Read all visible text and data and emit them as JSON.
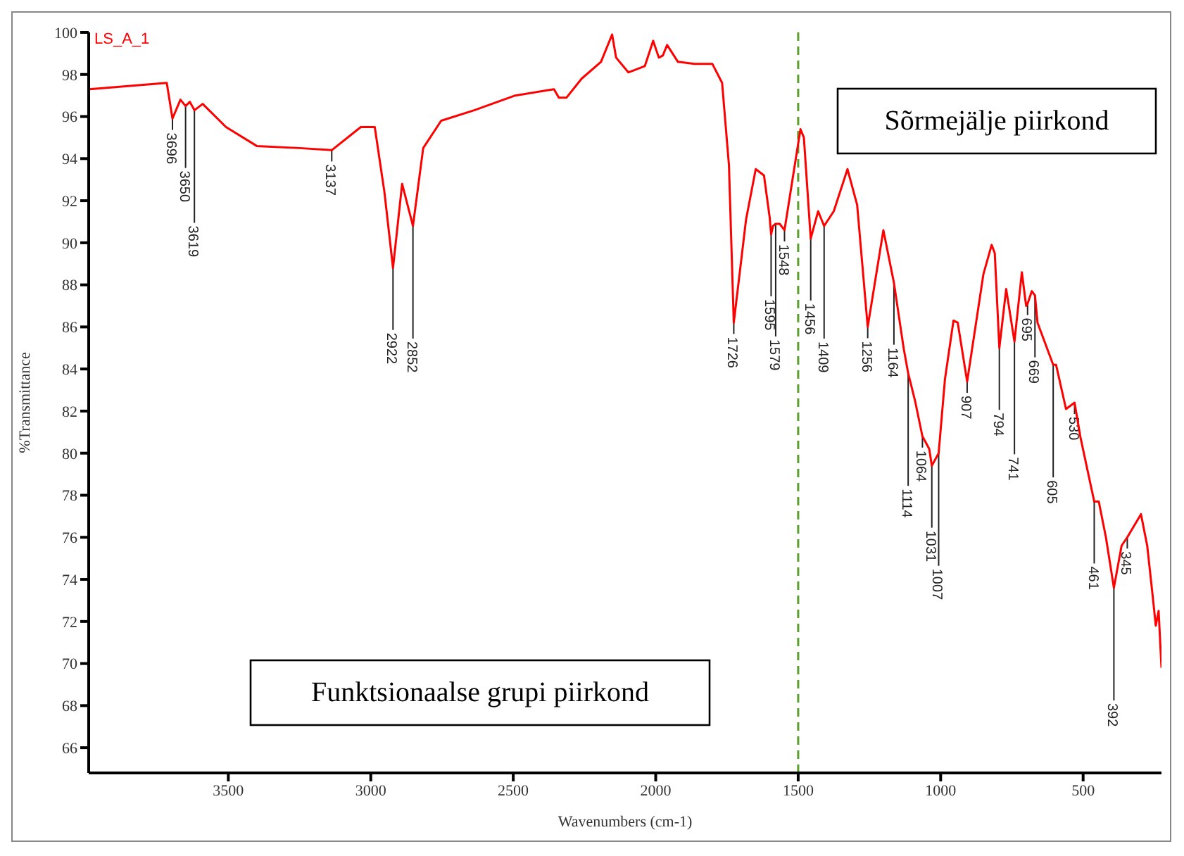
{
  "chart_data": {
    "type": "line",
    "xlabel": "Wavenumbers (cm-1)",
    "ylabel": "%Transmittance",
    "xlim": [
      3990,
      225
    ],
    "xticks": [
      3500,
      3000,
      2500,
      2000,
      1500,
      1000,
      500
    ],
    "ylim": [
      64.8,
      100
    ],
    "yticks": [
      66,
      68,
      70,
      72,
      74,
      76,
      78,
      80,
      82,
      84,
      86,
      88,
      90,
      92,
      94,
      96,
      98,
      100
    ],
    "grid": false,
    "legend": false,
    "x": [
      3987,
      3716,
      3696,
      3668,
      3650,
      3635,
      3619,
      3590,
      3508,
      3400,
      3250,
      3137,
      3035,
      2986,
      2952,
      2922,
      2890,
      2852,
      2816,
      2753,
      2637,
      2493,
      2357,
      2340,
      2313,
      2260,
      2192,
      2153,
      2139,
      2096,
      2038,
      2009,
      1989,
      1975,
      1960,
      1922,
      1864,
      1801,
      1767,
      1743,
      1726,
      1683,
      1649,
      1620,
      1600,
      1595,
      1588,
      1579,
      1565,
      1548,
      1520,
      1492,
      1480,
      1456,
      1430,
      1409,
      1375,
      1327,
      1293,
      1256,
      1201,
      1164,
      1130,
      1114,
      1090,
      1064,
      1040,
      1031,
      1007,
      985,
      955,
      940,
      907,
      850,
      821,
      810,
      794,
      770,
      741,
      715,
      700,
      695,
      680,
      669,
      660,
      605,
      595,
      560,
      530,
      510,
      480,
      461,
      445,
      420,
      392,
      365,
      345,
      297,
      275,
      255,
      245,
      235,
      225
    ],
    "series": [
      {
        "name": "LS_A_1",
        "color": "#ff0000",
        "values": [
          97.3,
          97.6,
          95.9,
          96.8,
          96.5,
          96.7,
          96.3,
          96.6,
          95.5,
          94.6,
          94.5,
          94.4,
          95.5,
          95.5,
          92.4,
          88.8,
          92.8,
          90.8,
          94.5,
          95.8,
          96.3,
          97.0,
          97.3,
          96.9,
          96.9,
          97.8,
          98.6,
          99.9,
          98.8,
          98.1,
          98.4,
          99.6,
          98.8,
          98.9,
          99.4,
          98.6,
          98.5,
          98.5,
          97.6,
          93.7,
          86.2,
          91.1,
          93.5,
          93.2,
          91.2,
          90.4,
          90.8,
          90.9,
          90.9,
          90.6,
          93.0,
          95.4,
          95.0,
          90.2,
          91.5,
          90.8,
          91.5,
          93.5,
          91.8,
          86.0,
          90.6,
          88.1,
          85.0,
          83.8,
          82.5,
          80.8,
          80.2,
          79.4,
          80.0,
          83.5,
          86.3,
          86.2,
          83.4,
          88.5,
          89.9,
          89.5,
          85.0,
          87.8,
          85.3,
          88.6,
          87.0,
          87.1,
          87.7,
          87.5,
          86.2,
          84.2,
          84.2,
          82.1,
          82.4,
          80.8,
          78.9,
          77.7,
          77.7,
          76.0,
          73.6,
          75.6,
          76.0,
          77.1,
          75.6,
          73.1,
          71.8,
          72.5,
          69.8
        ]
      }
    ],
    "ref_lines": [
      {
        "axis": "x",
        "value": 1500,
        "color": "#5aa02c",
        "line_style": "dashed"
      }
    ],
    "annotations": [
      "Sõrmejälje piirkond",
      "Funktsionaalse grupi piirkond",
      {
        "text": "3696",
        "x": 3696,
        "y": 95.9
      },
      {
        "text": "3650",
        "x": 3650,
        "y": 96.5
      },
      {
        "text": "3619",
        "x": 3619,
        "y": 96.3
      },
      {
        "text": "3137",
        "x": 3137,
        "y": 94.4
      },
      {
        "text": "2922",
        "x": 2922,
        "y": 88.8
      },
      {
        "text": "2852",
        "x": 2852,
        "y": 90.8
      },
      {
        "text": "1726",
        "x": 1726,
        "y": 86.2
      },
      {
        "text": "1595",
        "x": 1595,
        "y": 90.4
      },
      {
        "text": "1579",
        "x": 1579,
        "y": 90.9
      },
      {
        "text": "1548",
        "x": 1548,
        "y": 90.6
      },
      {
        "text": "1456",
        "x": 1456,
        "y": 90.2
      },
      {
        "text": "1409",
        "x": 1409,
        "y": 90.8
      },
      {
        "text": "1256",
        "x": 1256,
        "y": 86.0
      },
      {
        "text": "1164",
        "x": 1164,
        "y": 88.1
      },
      {
        "text": "1114",
        "x": 1114,
        "y": 83.8
      },
      {
        "text": "1064",
        "x": 1064,
        "y": 80.8
      },
      {
        "text": "1031",
        "x": 1031,
        "y": 79.4
      },
      {
        "text": "1007",
        "x": 1007,
        "y": 80.0
      },
      {
        "text": "907",
        "x": 907,
        "y": 83.4
      },
      {
        "text": "794",
        "x": 794,
        "y": 85.0
      },
      {
        "text": "741",
        "x": 741,
        "y": 85.3
      },
      {
        "text": "695",
        "x": 695,
        "y": 87.1
      },
      {
        "text": "669",
        "x": 669,
        "y": 87.5
      },
      {
        "text": "605",
        "x": 605,
        "y": 84.2
      },
      {
        "text": "530",
        "x": 530,
        "y": 82.4
      },
      {
        "text": "461",
        "x": 461,
        "y": 77.7
      },
      {
        "text": "392",
        "x": 392,
        "y": 73.6
      },
      {
        "text": "345",
        "x": 345,
        "y": 76.0
      }
    ]
  }
}
